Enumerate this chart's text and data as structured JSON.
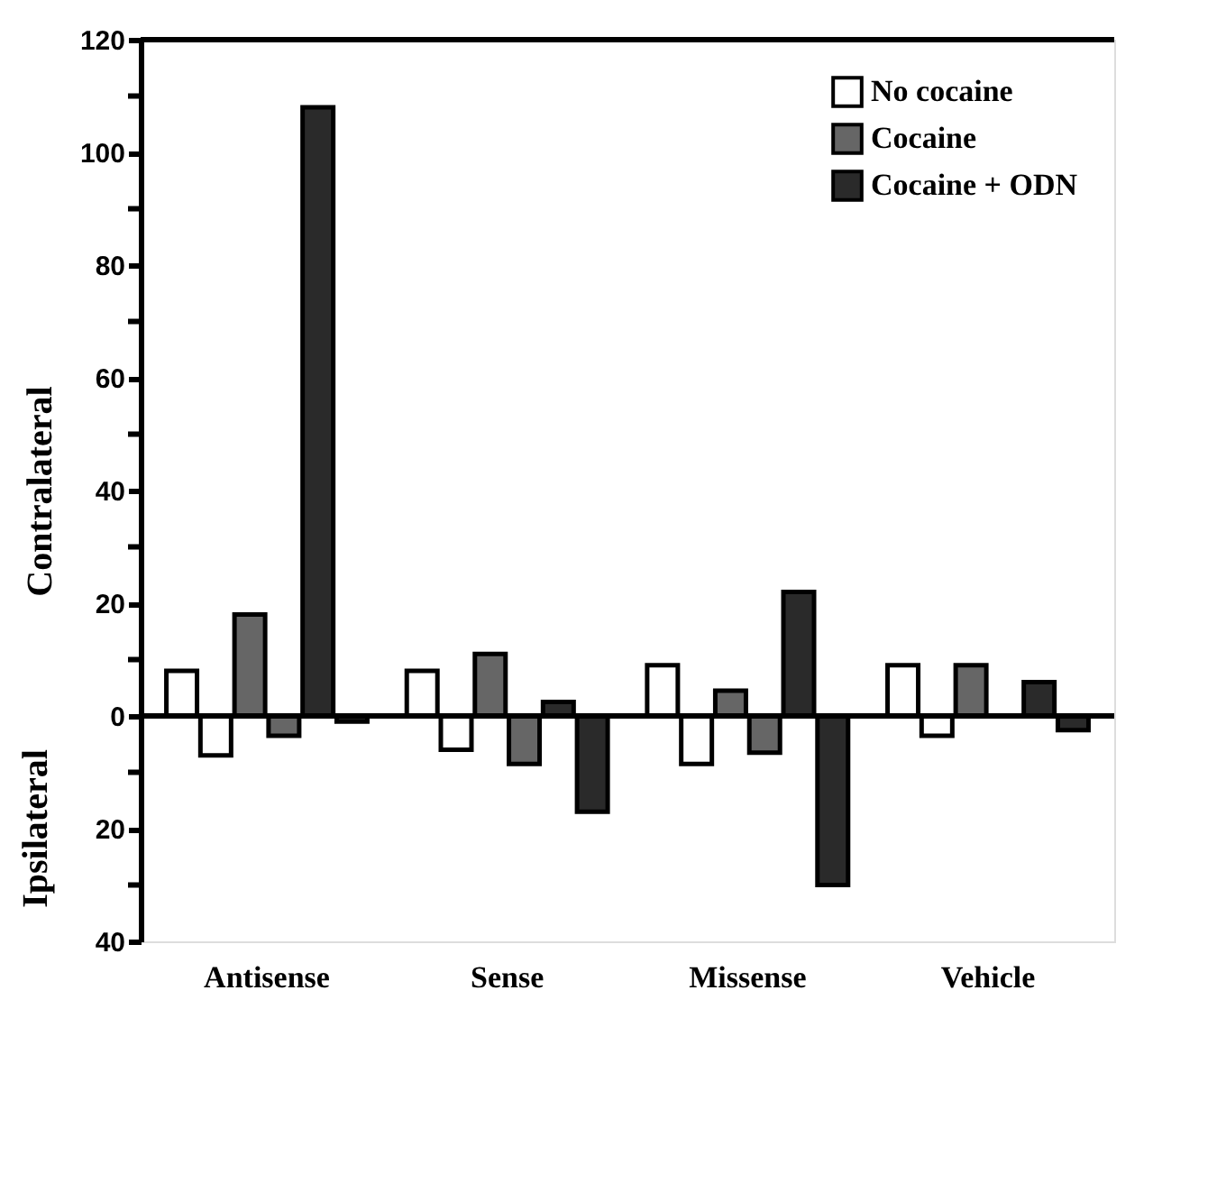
{
  "chart_data": {
    "type": "bar",
    "ylabel": "Contralateral",
    "annotations": [
      "Ipsilateral"
    ],
    "categories": [
      "Antisense",
      "Sense",
      "Missense",
      "Vehicle"
    ],
    "series": [
      {
        "name": "No cocaine",
        "color": "#ffffff",
        "values": [
          8,
          8,
          9,
          9
        ]
      },
      {
        "color": "#ffffff",
        "values": [
          -7,
          -6,
          -8.5,
          -3.5
        ]
      },
      {
        "name": "Cocaine",
        "color": "#666666",
        "values": [
          18,
          11,
          4.5,
          9
        ]
      },
      {
        "color": "#666666",
        "values": [
          -3.5,
          -8.5,
          -6.5,
          null
        ]
      },
      {
        "name": "Cocaine + ODN",
        "color": "#2a2a2a",
        "values": [
          108,
          2.5,
          22,
          6
        ]
      },
      {
        "color": "#2a2a2a",
        "values": [
          -1,
          -17,
          -30,
          -2.5
        ]
      }
    ],
    "ylim": [
      -40,
      120
    ],
    "yticks": [
      {
        "value": -40,
        "label": "40"
      },
      {
        "value": -30,
        "label": null
      },
      {
        "value": -20,
        "label": "20"
      },
      {
        "value": -10,
        "label": null
      },
      0,
      {
        "value": 10,
        "label": null
      },
      20,
      {
        "value": 30,
        "label": null
      },
      40,
      {
        "value": 50,
        "label": null
      },
      60,
      {
        "value": 70,
        "label": null
      },
      80,
      {
        "value": 90,
        "label": null
      },
      100,
      {
        "value": 110,
        "label": null
      },
      120
    ],
    "ref_lines": [
      {
        "axis": "y",
        "value": 0
      }
    ],
    "grid": false,
    "legend": "top right"
  }
}
